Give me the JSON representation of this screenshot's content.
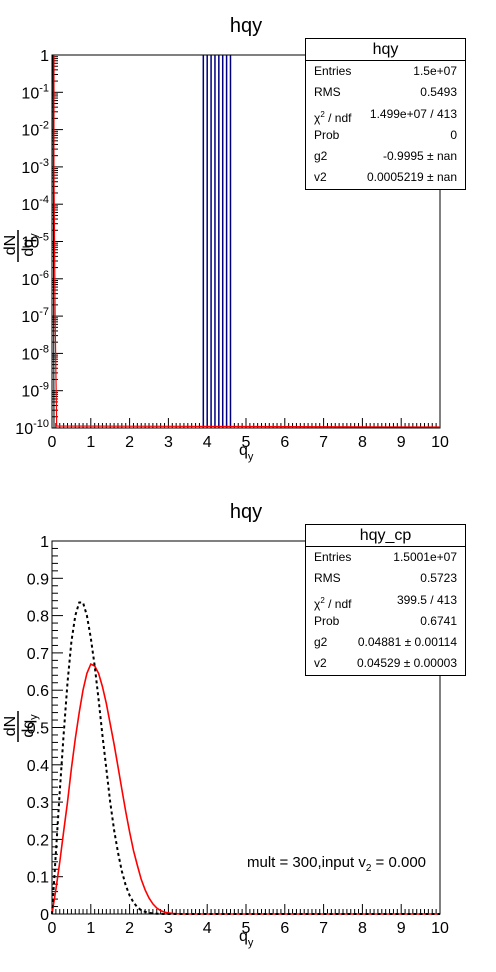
{
  "chart_data": [
    {
      "type": "histogram",
      "title": "hqy",
      "xlabel": "q_y",
      "ylabel": "dN / dq_y",
      "x_ticks": [
        "0",
        "1",
        "2",
        "3",
        "4",
        "5",
        "6",
        "7",
        "8",
        "9",
        "10"
      ],
      "y_ticks": [
        "10^-10",
        "10^-9",
        "10^-8",
        "10^-7",
        "10^-6",
        "10^-5",
        "10^-4",
        "10^-3",
        "10^-2",
        "10^-1",
        "1"
      ],
      "xlim": [
        0,
        10
      ],
      "ylim": [
        1e-10,
        1
      ],
      "y_scale": "log",
      "stats": {
        "title": "hqy",
        "rows": [
          {
            "key": "Entries",
            "value": "1.5e+07"
          },
          {
            "key": "RMS",
            "value": "0.5493"
          },
          {
            "key": "χ2 / ndf",
            "value": "1.499e+07 / 413"
          },
          {
            "key": "Prob",
            "value": "0"
          },
          {
            "key": "g2",
            "value": "-0.9995 ± nan"
          },
          {
            "key": "v2",
            "value": "0.0005219 ± nan"
          }
        ]
      },
      "vertical_lines_x": [
        3.9,
        4.0,
        4.1,
        4.2,
        4.3,
        4.4,
        4.5,
        4.6
      ]
    },
    {
      "type": "line",
      "title": "hqy",
      "xlabel": "q_y",
      "ylabel": "dN / dq_y",
      "x_ticks": [
        "0",
        "1",
        "2",
        "3",
        "4",
        "5",
        "6",
        "7",
        "8",
        "9",
        "10"
      ],
      "y_ticks": [
        "0",
        "0.1",
        "0.2",
        "0.3",
        "0.4",
        "0.5",
        "0.6",
        "0.7",
        "0.8",
        "0.9",
        "1"
      ],
      "xlim": [
        0,
        10
      ],
      "ylim": [
        0,
        1
      ],
      "stats": {
        "title": "hqy_cp",
        "rows": [
          {
            "key": "Entries",
            "value": "1.5001e+07"
          },
          {
            "key": "RMS",
            "value": "0.5723"
          },
          {
            "key": "χ2 / ndf",
            "value": "399.5 / 413"
          },
          {
            "key": "Prob",
            "value": "0.6741"
          },
          {
            "key": "g2",
            "value": "0.04881 ± 0.00114"
          },
          {
            "key": "v2",
            "value": "0.04529 ± 0.00003"
          }
        ]
      },
      "annotation": "mult = 300,input v_2 = 0.000",
      "series": [
        {
          "style": "solid",
          "color": "#ff0000",
          "x": [
            0,
            0.1,
            0.2,
            0.3,
            0.4,
            0.5,
            0.6,
            0.7,
            0.8,
            0.9,
            1.0,
            1.1,
            1.2,
            1.3,
            1.4,
            1.5,
            1.6,
            1.7,
            1.8,
            1.9,
            2.0,
            2.1,
            2.2,
            2.3,
            2.4,
            2.5,
            2.6,
            2.7,
            2.8,
            2.9,
            3.0,
            3.1,
            3.2,
            3.3,
            3.5,
            4.0,
            5.0,
            10.0
          ],
          "y": [
            0,
            0.066,
            0.14,
            0.22,
            0.3,
            0.39,
            0.47,
            0.54,
            0.6,
            0.645,
            0.67,
            0.665,
            0.645,
            0.61,
            0.565,
            0.51,
            0.455,
            0.395,
            0.335,
            0.275,
            0.22,
            0.17,
            0.13,
            0.093,
            0.065,
            0.043,
            0.027,
            0.016,
            0.009,
            0.005,
            0.003,
            0.0015,
            0.0007,
            0.0003,
            0.0001,
            0,
            0,
            0
          ]
        },
        {
          "style": "dotted",
          "color": "#000000",
          "x": [
            0,
            0.1,
            0.2,
            0.3,
            0.4,
            0.5,
            0.6,
            0.7,
            0.8,
            0.9,
            1.0,
            1.1,
            1.2,
            1.3,
            1.4,
            1.5,
            1.6,
            1.7,
            1.8,
            1.9,
            2.0,
            2.1,
            2.2,
            2.3,
            2.4,
            2.5,
            2.6,
            2.7,
            2.8,
            2.9,
            3.0,
            3.2,
            3.5,
            10.0
          ],
          "y": [
            0,
            0.165,
            0.33,
            0.48,
            0.62,
            0.73,
            0.8,
            0.835,
            0.835,
            0.8,
            0.74,
            0.665,
            0.575,
            0.48,
            0.39,
            0.3,
            0.225,
            0.165,
            0.115,
            0.077,
            0.05,
            0.031,
            0.018,
            0.01,
            0.006,
            0.003,
            0.0015,
            0.0007,
            0.0003,
            0.0001,
            0,
            0,
            0,
            0
          ]
        }
      ]
    }
  ]
}
